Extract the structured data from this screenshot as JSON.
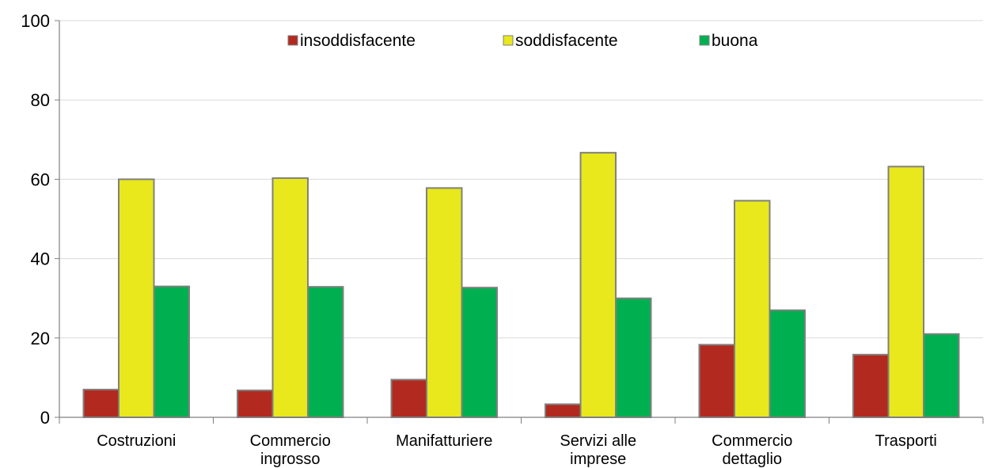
{
  "chart_data": {
    "type": "bar",
    "categories": [
      [
        "Costruzioni"
      ],
      [
        "Commercio",
        "ingrosso"
      ],
      [
        "Manifatturiere"
      ],
      [
        "Servizi alle",
        "imprese"
      ],
      [
        "Commercio",
        "dettaglio"
      ],
      [
        "Trasporti"
      ]
    ],
    "series": [
      {
        "name": "insoddisfacente",
        "values": [
          7.0,
          6.8,
          9.5,
          3.3,
          18.3,
          15.8
        ]
      },
      {
        "name": "soddisfacente",
        "values": [
          60.0,
          60.3,
          57.8,
          66.7,
          54.6,
          63.2
        ]
      },
      {
        "name": "buona",
        "values": [
          33.0,
          32.9,
          32.7,
          30.0,
          27.0,
          21.0
        ]
      }
    ],
    "colors": {
      "insoddisfacente": "#b22a1f",
      "soddisfacente": "#e8e81c",
      "buona": "#00b050",
      "bar_border": "#808080",
      "grid": "#d9d9d9",
      "axis": "#808080"
    },
    "yticks": [
      "0",
      "20",
      "40",
      "60",
      "80",
      "100"
    ],
    "ylim": [
      0,
      100
    ],
    "grid": true,
    "legend_position": "top"
  }
}
